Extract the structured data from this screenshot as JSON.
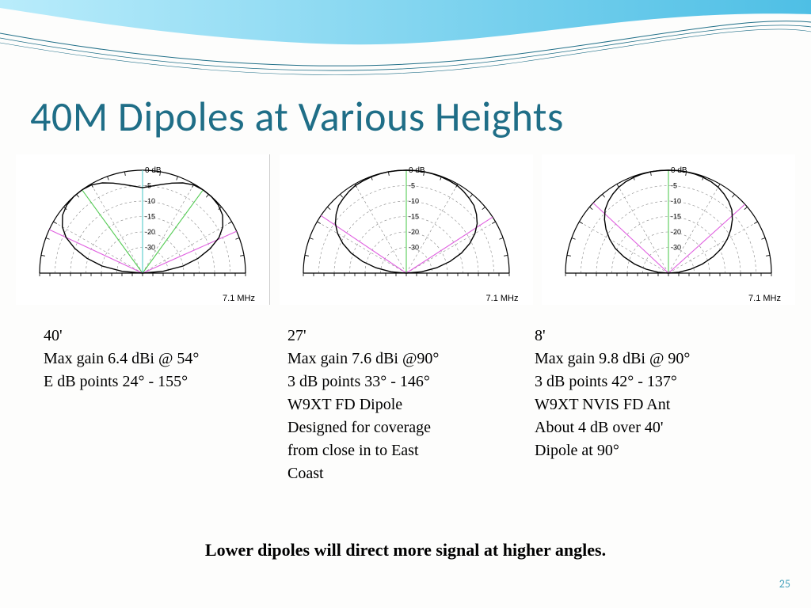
{
  "title": "40M Dipoles at Various Heights",
  "summary": "Lower dipoles will direct more signal at higher angles.",
  "page_number": "25",
  "colors": {
    "title": "#1f6e87",
    "wave_fill": "#6ecff6",
    "wave_stroke": "#1f6e87",
    "chart_outline": "#000000",
    "chart_grid": "#888888",
    "pattern_main": "#000000",
    "marker_green": "#55cc55",
    "marker_cyan": "#55cccc",
    "marker_magenta": "#e060e0"
  },
  "db_ring_labels": [
    "0 dB",
    "-5",
    "-10",
    "-15",
    "-20",
    "-30"
  ],
  "db_ring_radii": [
    1.0,
    0.85,
    0.7,
    0.55,
    0.4,
    0.25
  ],
  "angle_spokes_deg": [
    30,
    60,
    90,
    120,
    150
  ],
  "tick_spokes_step_deg": 10,
  "freq_label": "7.1 MHz",
  "charts": [
    {
      "caption_lines": [
        "40'",
        "Max gain 6.4 dBi @ 54°",
        "E dB points 24° - 155°"
      ],
      "pattern_norm": [
        [
          0,
          0.0
        ],
        [
          5,
          0.2
        ],
        [
          10,
          0.4
        ],
        [
          15,
          0.56
        ],
        [
          20,
          0.7
        ],
        [
          25,
          0.82
        ],
        [
          30,
          0.9
        ],
        [
          36,
          0.96
        ],
        [
          42,
          0.99
        ],
        [
          48,
          1.0
        ],
        [
          54,
          1.0
        ],
        [
          60,
          0.99
        ],
        [
          66,
          0.96
        ],
        [
          72,
          0.92
        ],
        [
          78,
          0.88
        ],
        [
          84,
          0.85
        ],
        [
          90,
          0.83
        ],
        [
          96,
          0.85
        ],
        [
          102,
          0.88
        ],
        [
          108,
          0.92
        ],
        [
          114,
          0.96
        ],
        [
          120,
          0.99
        ],
        [
          126,
          1.0
        ],
        [
          132,
          1.0
        ],
        [
          138,
          0.99
        ],
        [
          144,
          0.96
        ],
        [
          150,
          0.9
        ],
        [
          155,
          0.82
        ],
        [
          160,
          0.7
        ],
        [
          165,
          0.56
        ],
        [
          170,
          0.4
        ],
        [
          175,
          0.2
        ],
        [
          180,
          0.0
        ]
      ],
      "markers": [
        {
          "color": "marker_green",
          "angles": [
            54,
            126
          ]
        },
        {
          "color": "marker_cyan",
          "angles": [
            90
          ]
        },
        {
          "color": "marker_magenta",
          "angles": [
            24,
            155
          ]
        }
      ]
    },
    {
      "caption_lines": [
        "27'",
        "Max gain 7.6 dBi @90°",
        "3 dB points 33° - 146°",
        "W9XT FD Dipole",
        "Designed for coverage",
        "from close in to East",
        "Coast"
      ],
      "pattern_norm": [
        [
          0,
          0.0
        ],
        [
          5,
          0.15
        ],
        [
          10,
          0.3
        ],
        [
          15,
          0.44
        ],
        [
          20,
          0.57
        ],
        [
          25,
          0.68
        ],
        [
          30,
          0.77
        ],
        [
          35,
          0.84
        ],
        [
          40,
          0.89
        ],
        [
          45,
          0.93
        ],
        [
          50,
          0.95
        ],
        [
          55,
          0.97
        ],
        [
          60,
          0.985
        ],
        [
          65,
          0.99
        ],
        [
          70,
          0.995
        ],
        [
          75,
          0.998
        ],
        [
          80,
          1.0
        ],
        [
          85,
          1.0
        ],
        [
          90,
          1.0
        ],
        [
          95,
          1.0
        ],
        [
          100,
          1.0
        ],
        [
          105,
          0.998
        ],
        [
          110,
          0.995
        ],
        [
          115,
          0.99
        ],
        [
          120,
          0.985
        ],
        [
          125,
          0.97
        ],
        [
          130,
          0.95
        ],
        [
          135,
          0.93
        ],
        [
          140,
          0.89
        ],
        [
          145,
          0.84
        ],
        [
          150,
          0.77
        ],
        [
          155,
          0.68
        ],
        [
          160,
          0.57
        ],
        [
          165,
          0.44
        ],
        [
          170,
          0.3
        ],
        [
          175,
          0.15
        ],
        [
          180,
          0.0
        ]
      ],
      "markers": [
        {
          "color": "marker_green",
          "angles": [
            90
          ]
        },
        {
          "color": "marker_magenta",
          "angles": [
            33,
            146
          ]
        }
      ]
    },
    {
      "caption_lines": [
        "8'",
        "Max gain 9.8 dBi @ 90°",
        "3 dB points 42° - 137°",
        "W9XT NVIS FD Ant",
        "About 4 dB over 40'",
        "Dipole at 90°"
      ],
      "pattern_norm": [
        [
          0,
          0.0
        ],
        [
          5,
          0.1
        ],
        [
          10,
          0.22
        ],
        [
          15,
          0.34
        ],
        [
          20,
          0.46
        ],
        [
          25,
          0.57
        ],
        [
          30,
          0.66
        ],
        [
          35,
          0.74
        ],
        [
          40,
          0.81
        ],
        [
          45,
          0.87
        ],
        [
          50,
          0.91
        ],
        [
          55,
          0.94
        ],
        [
          60,
          0.965
        ],
        [
          65,
          0.98
        ],
        [
          70,
          0.99
        ],
        [
          75,
          0.996
        ],
        [
          80,
          0.999
        ],
        [
          85,
          1.0
        ],
        [
          90,
          1.0
        ],
        [
          95,
          1.0
        ],
        [
          100,
          0.999
        ],
        [
          105,
          0.996
        ],
        [
          110,
          0.99
        ],
        [
          115,
          0.98
        ],
        [
          120,
          0.965
        ],
        [
          125,
          0.94
        ],
        [
          130,
          0.91
        ],
        [
          135,
          0.87
        ],
        [
          140,
          0.81
        ],
        [
          145,
          0.74
        ],
        [
          150,
          0.66
        ],
        [
          155,
          0.57
        ],
        [
          160,
          0.46
        ],
        [
          165,
          0.34
        ],
        [
          170,
          0.22
        ],
        [
          175,
          0.1
        ],
        [
          180,
          0.0
        ]
      ],
      "markers": [
        {
          "color": "marker_green",
          "angles": [
            90
          ]
        },
        {
          "color": "marker_magenta",
          "angles": [
            42,
            137
          ]
        }
      ]
    }
  ]
}
